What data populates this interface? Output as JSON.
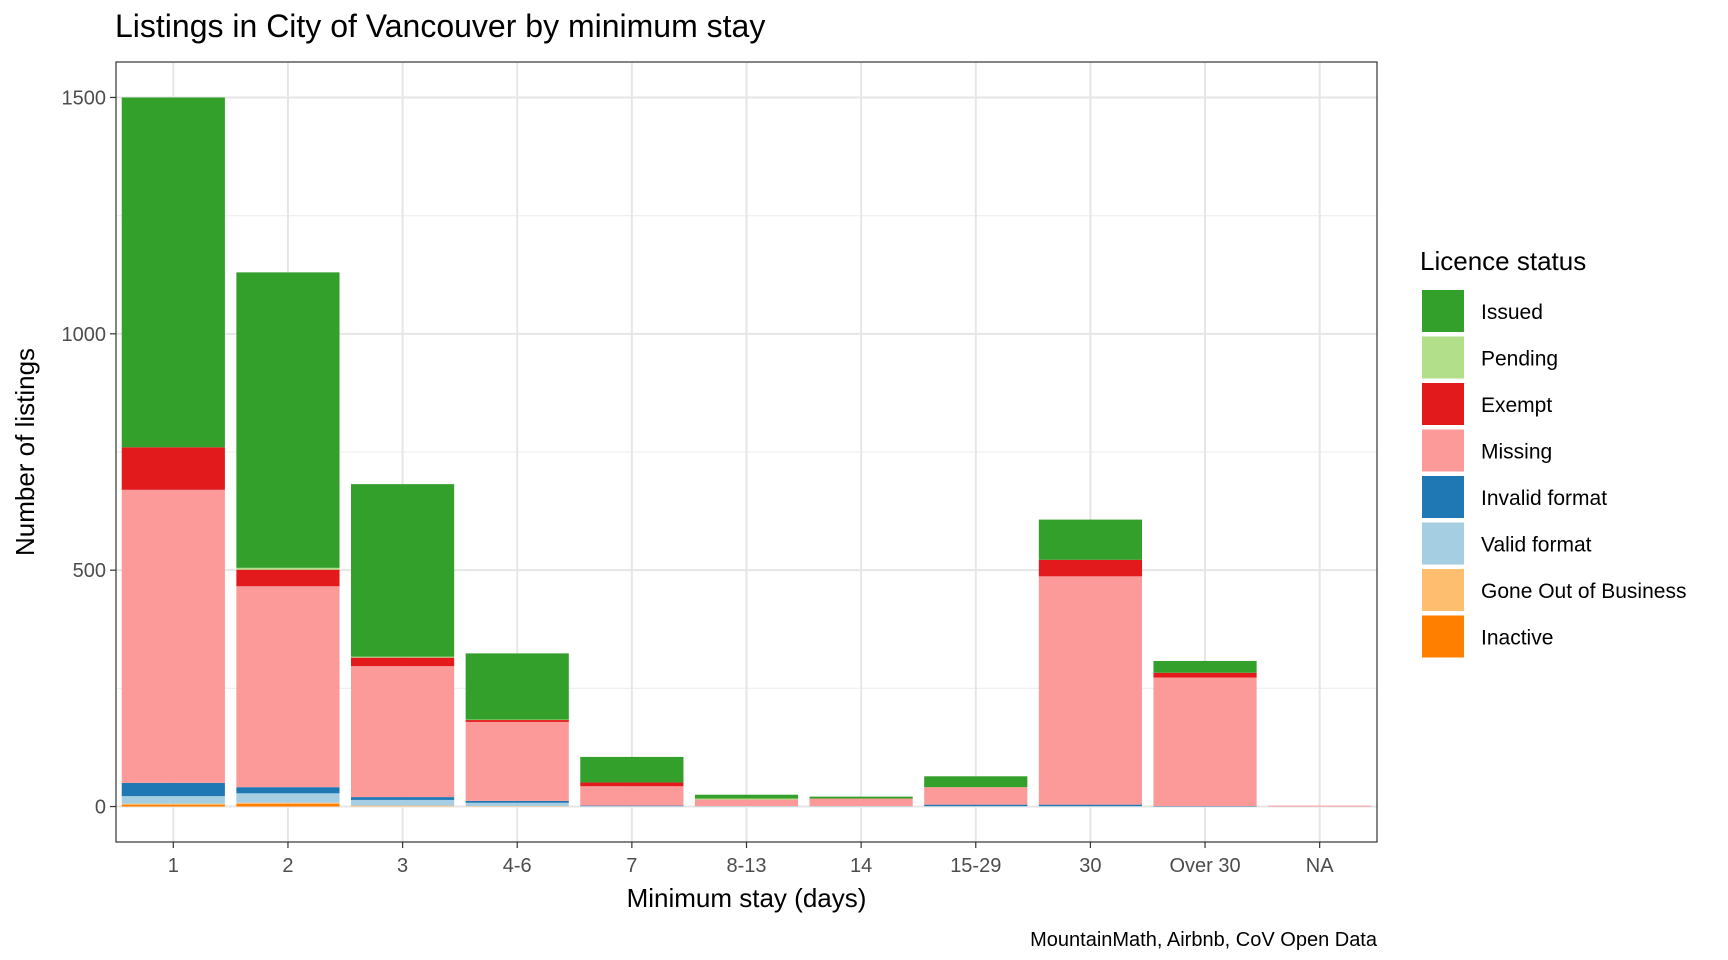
{
  "chart_data": {
    "type": "bar",
    "stacked": true,
    "title": "Listings in City of Vancouver by minimum stay",
    "xlabel": "Minimum stay (days)",
    "ylabel": "Number of listings",
    "caption": "MountainMath, Airbnb, CoV Open Data",
    "legend_title": "Licence status",
    "legend_position": "right",
    "grid": true,
    "ylim": [
      -75,
      1575
    ],
    "yticks": [
      0,
      500,
      1000,
      1500
    ],
    "categories": [
      "1",
      "2",
      "3",
      "4-6",
      "7",
      "8-13",
      "14",
      "15-29",
      "30",
      "Over 30",
      "NA"
    ],
    "series": [
      {
        "name": "Inactive",
        "color": "#FF7F00",
        "values": [
          4,
          6,
          0,
          0,
          0,
          0,
          0,
          0,
          0,
          0,
          0
        ]
      },
      {
        "name": "Gone Out of Business",
        "color": "#FDBF6F",
        "values": [
          2,
          2,
          2,
          1,
          0,
          0,
          0,
          0,
          0,
          0,
          0
        ]
      },
      {
        "name": "Valid format",
        "color": "#A6CEE3",
        "values": [
          16,
          20,
          12,
          7,
          1,
          1,
          1,
          1,
          1,
          0,
          0
        ]
      },
      {
        "name": "Invalid format",
        "color": "#1F78B4",
        "values": [
          28,
          13,
          6,
          4,
          1,
          0,
          0,
          3,
          3,
          1,
          0
        ]
      },
      {
        "name": "Missing",
        "color": "#FB9A99",
        "values": [
          620,
          425,
          277,
          167,
          41,
          14,
          16,
          37,
          483,
          272,
          2
        ]
      },
      {
        "name": "Exempt",
        "color": "#E31A1C",
        "values": [
          90,
          35,
          18,
          4,
          8,
          0,
          0,
          0,
          35,
          10,
          0
        ]
      },
      {
        "name": "Pending",
        "color": "#B2DF8A",
        "values": [
          0,
          4,
          2,
          1,
          0,
          2,
          0,
          0,
          0,
          0,
          0
        ]
      },
      {
        "name": "Issued",
        "color": "#33A02C",
        "values": [
          740,
          625,
          365,
          140,
          54,
          8,
          4,
          23,
          85,
          25,
          0
        ]
      }
    ]
  }
}
